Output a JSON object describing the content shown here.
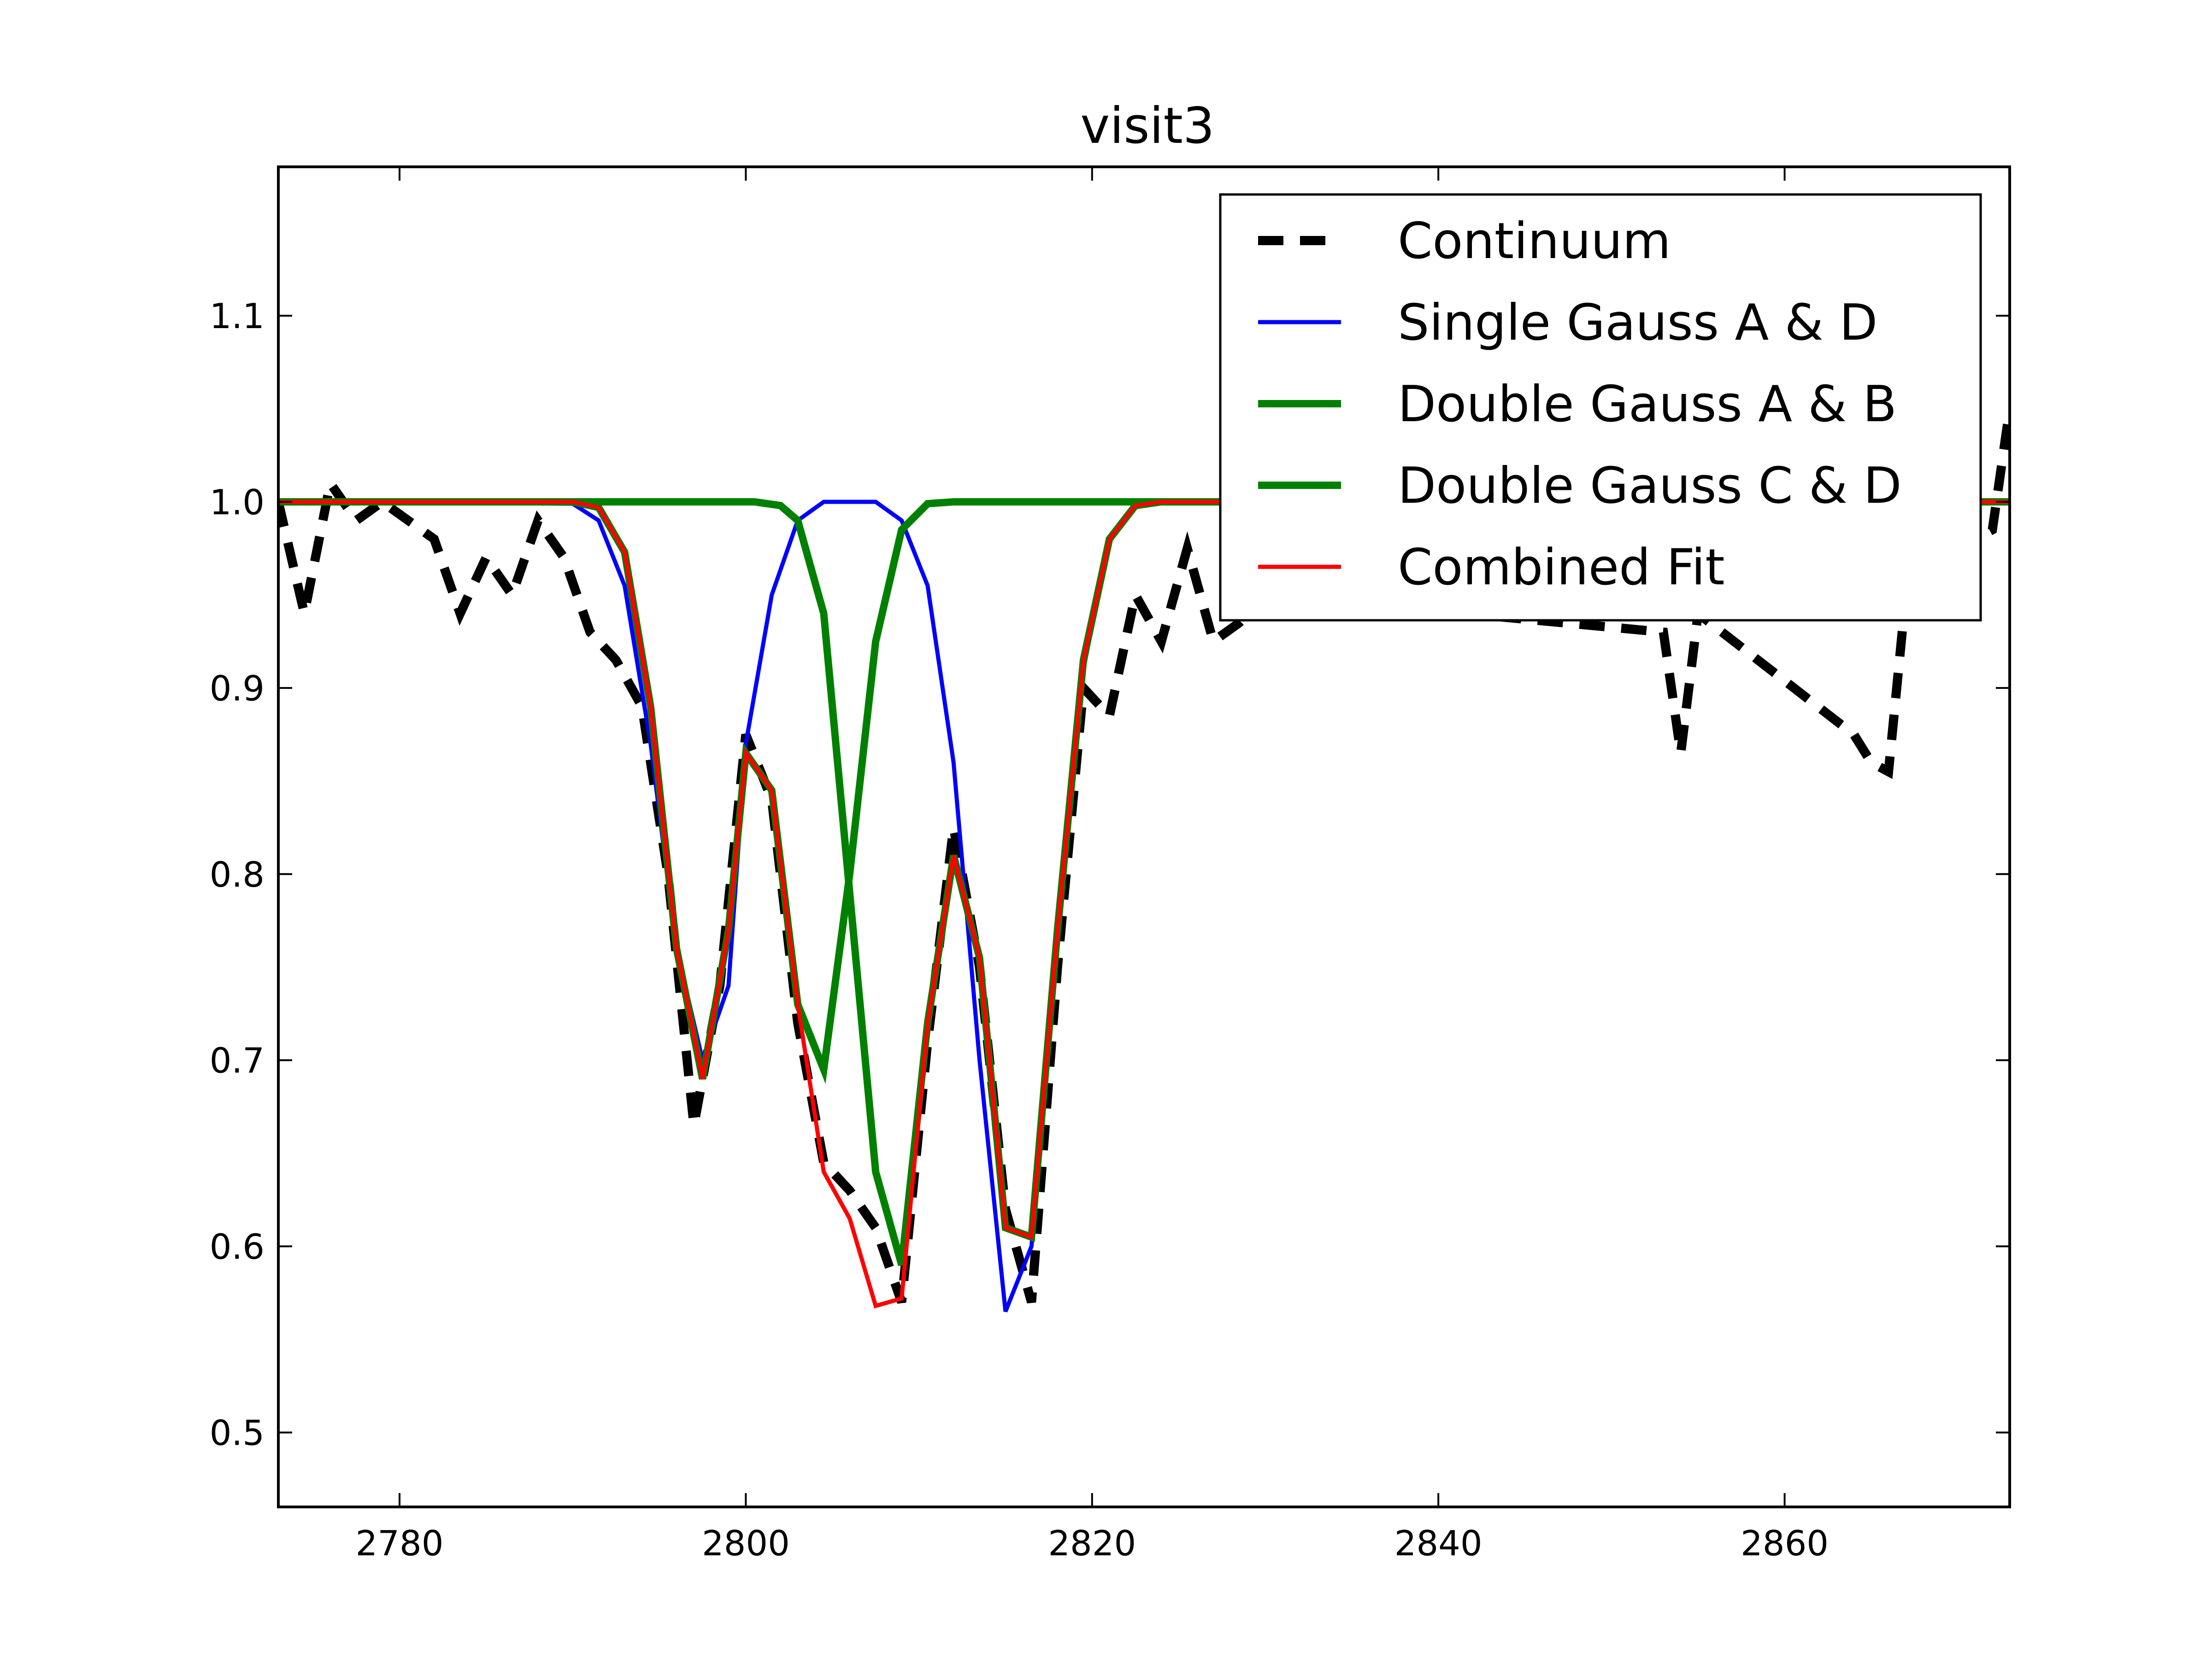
{
  "chart_data": {
    "type": "line",
    "title": "visit3",
    "xlabel": "",
    "ylabel": "",
    "xlim": [
      2773,
      2873
    ],
    "ylim": [
      0.46,
      1.18
    ],
    "x_ticks": [
      2780,
      2800,
      2820,
      2840,
      2860
    ],
    "y_ticks": [
      0.5,
      0.6,
      0.7,
      0.8,
      0.9,
      1.0,
      1.1
    ],
    "x_tick_labels": [
      "2780",
      "2800",
      "2820",
      "2840",
      "2860"
    ],
    "y_tick_labels": [
      "0.5",
      "0.6",
      "0.7",
      "0.8",
      "0.9",
      "1.0",
      "1.1"
    ],
    "grid": false,
    "legend_position": "top-right",
    "series": [
      {
        "name": "Continuum",
        "color": "#000000",
        "style": "dashed",
        "x": [
          2773,
          2774.5,
          2776,
          2777.5,
          2779,
          2780.5,
          2782,
          2783.5,
          2785,
          2786.5,
          2788,
          2789.5,
          2791,
          2792.5,
          2794,
          2795.5,
          2797,
          2798.5,
          2800,
          2801.5,
          2803,
          2804.5,
          2806,
          2807.5,
          2809,
          2810.5,
          2812,
          2813.5,
          2815,
          2816.5,
          2818,
          2819.5,
          2821,
          2822.5,
          2824,
          2825.5,
          2827,
          2828.5,
          2830,
          2853,
          2854,
          2855,
          2864,
          2865,
          2866,
          2867,
          2871,
          2872,
          2873
        ],
        "y": [
          1.0,
          0.94,
          1.01,
          0.99,
          1.0,
          0.99,
          0.98,
          0.94,
          0.97,
          0.95,
          0.99,
          0.97,
          0.93,
          0.915,
          0.89,
          0.8,
          0.665,
          0.74,
          0.875,
          0.84,
          0.72,
          0.645,
          0.63,
          0.61,
          0.57,
          0.71,
          0.825,
          0.75,
          0.62,
          0.57,
          0.75,
          0.9,
          0.885,
          0.95,
          0.925,
          0.975,
          0.925,
          0.935,
          0.95,
          0.93,
          0.865,
          0.94,
          0.875,
          0.86,
          0.855,
          0.95,
          0.98,
          0.985,
          1.05
        ]
      },
      {
        "name": "Single Gauss A & D",
        "color": "#0000ff",
        "style": "solid",
        "x": [
          2773,
          2790,
          2791.5,
          2793,
          2794.5,
          2796,
          2797.5,
          2799,
          2800,
          2801.5,
          2803,
          2804.5,
          2806,
          2807.5,
          2809,
          2810.5,
          2812,
          2813.5,
          2815,
          2816.5,
          2818,
          2819.5,
          2821,
          2822.5,
          2824,
          2873
        ],
        "y": [
          1.0,
          0.999,
          0.99,
          0.955,
          0.87,
          0.76,
          0.7,
          0.74,
          0.87,
          0.95,
          0.99,
          1.0,
          1.0,
          1.0,
          0.99,
          0.955,
          0.86,
          0.7,
          0.565,
          0.6,
          0.76,
          0.91,
          0.98,
          0.998,
          1.0,
          1.0
        ]
      },
      {
        "name": "Double Gauss A & B",
        "color": "#008000",
        "style": "solid",
        "x": [
          2773,
          2790,
          2791.5,
          2793,
          2794.5,
          2796,
          2797.5,
          2799,
          2800,
          2801.5,
          2803,
          2804.5,
          2806,
          2807.5,
          2809,
          2810.5,
          2812,
          2873
        ],
        "y": [
          1.0,
          1.0,
          0.997,
          0.973,
          0.89,
          0.76,
          0.69,
          0.77,
          0.865,
          0.845,
          0.73,
          0.695,
          0.8,
          0.925,
          0.985,
          0.999,
          1.0,
          1.0
        ]
      },
      {
        "name": "Double Gauss C & D",
        "color": "#008000",
        "style": "solid",
        "x": [
          2773,
          2799,
          2800.5,
          2802,
          2803,
          2804.5,
          2806,
          2807.5,
          2809,
          2810.5,
          2812,
          2813.5,
          2815,
          2816.5,
          2818,
          2819.5,
          2821,
          2822.5,
          2824,
          2873
        ],
        "y": [
          1.0,
          1.0,
          1.0,
          0.998,
          0.99,
          0.94,
          0.79,
          0.64,
          0.59,
          0.72,
          0.81,
          0.755,
          0.61,
          0.605,
          0.77,
          0.915,
          0.98,
          0.998,
          1.0,
          1.0
        ]
      },
      {
        "name": "Combined Fit",
        "color": "#ff0000",
        "style": "solid",
        "x": [
          2773,
          2790,
          2791.5,
          2793,
          2794.5,
          2796,
          2797.5,
          2799,
          2800,
          2801.5,
          2803,
          2804.5,
          2806,
          2807.5,
          2809,
          2810.5,
          2812,
          2813.5,
          2815,
          2816.5,
          2818,
          2819.5,
          2821,
          2822.5,
          2824,
          2873
        ],
        "y": [
          1.0,
          1.0,
          0.997,
          0.973,
          0.89,
          0.76,
          0.69,
          0.77,
          0.865,
          0.845,
          0.73,
          0.64,
          0.615,
          0.568,
          0.572,
          0.72,
          0.81,
          0.755,
          0.61,
          0.605,
          0.77,
          0.915,
          0.98,
          0.998,
          1.0,
          1.0
        ]
      }
    ],
    "legend": {
      "entries": [
        {
          "label": "Continuum",
          "color": "#000000",
          "style": "dashed"
        },
        {
          "label": "Single Gauss A & D",
          "color": "#0000ff",
          "style": "solid"
        },
        {
          "label": "Double Gauss A & B",
          "color": "#008000",
          "style": "solid"
        },
        {
          "label": "Double Gauss C & D",
          "color": "#008000",
          "style": "solid"
        },
        {
          "label": "Combined Fit",
          "color": "#ff0000",
          "style": "solid"
        }
      ]
    }
  }
}
